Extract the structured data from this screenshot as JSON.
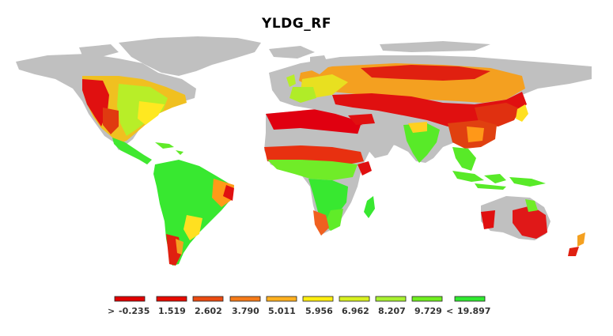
{
  "title": "YLDG_RF",
  "colors": {
    "land_no_data": "#c0c0c0",
    "ocean": "#ffffff"
  },
  "legend": {
    "swatches": [
      {
        "color": "#e00000"
      },
      {
        "color": "#e60a00"
      },
      {
        "color": "#ea4a10"
      },
      {
        "color": "#f57a18"
      },
      {
        "color": "#ffb020"
      },
      {
        "color": "#ffee10"
      },
      {
        "color": "#d8f020"
      },
      {
        "color": "#a8f030"
      },
      {
        "color": "#70ee20"
      },
      {
        "color": "#30e830"
      }
    ],
    "labels": [
      ">",
      "-0.235",
      "1.519",
      "2.602",
      "3.790",
      "5.011",
      "5.956",
      "6.962",
      "8.207",
      "9.729",
      "<",
      "19.897"
    ]
  }
}
